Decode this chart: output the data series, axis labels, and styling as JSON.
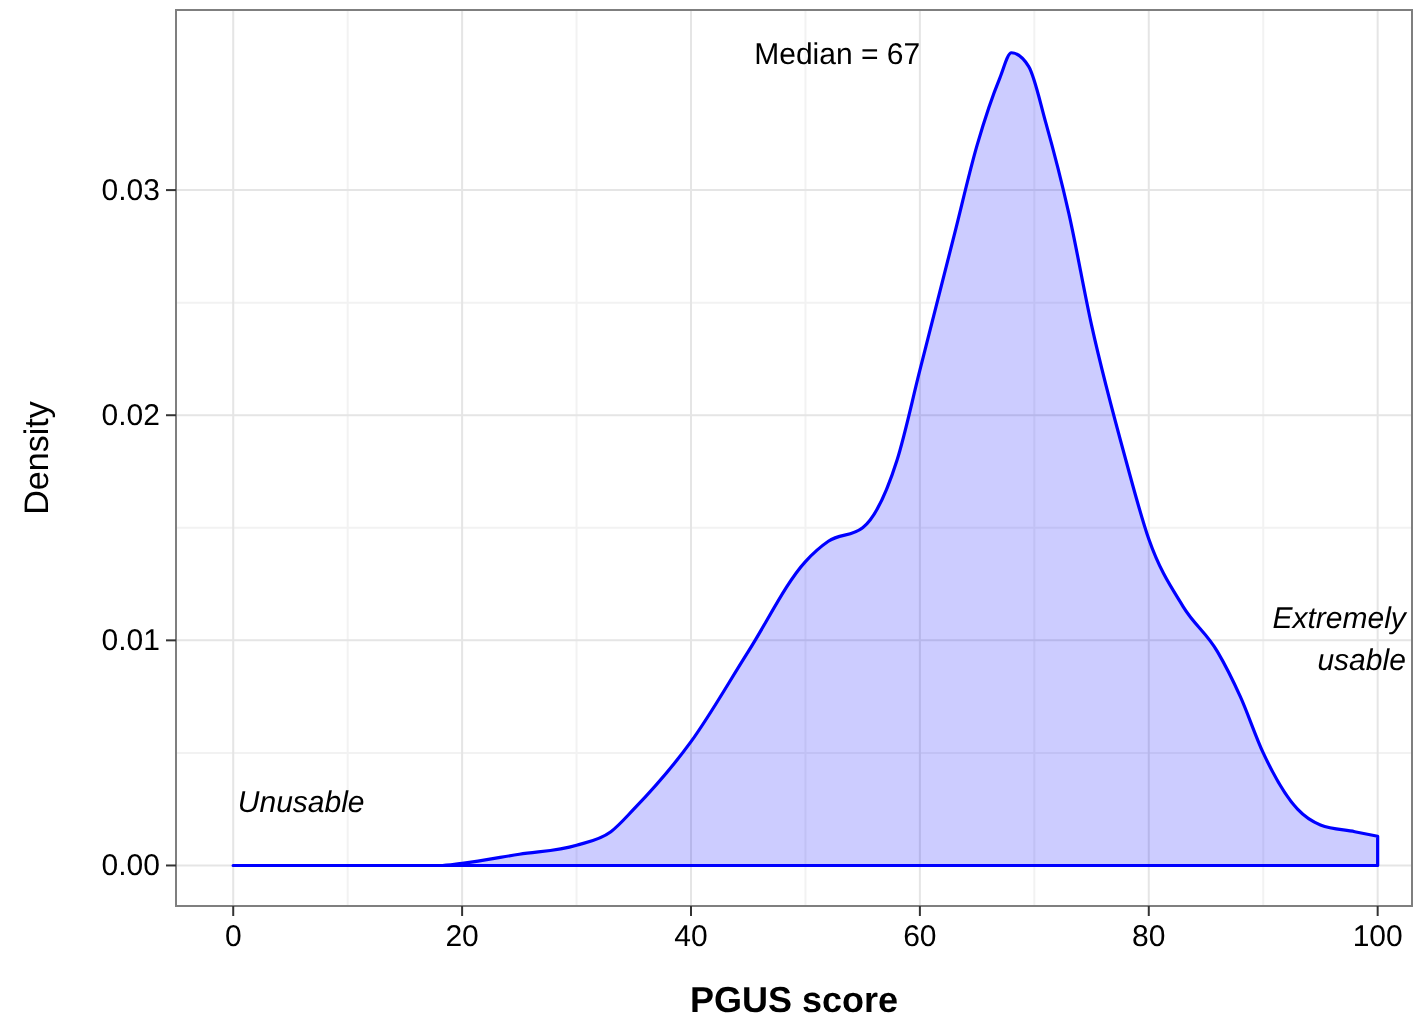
{
  "chart_data": {
    "type": "area",
    "xlabel": "PGUS score",
    "ylabel": "Density",
    "x": [
      0,
      10,
      18,
      20,
      25,
      30,
      33,
      35,
      40,
      45,
      50,
      52,
      55,
      58,
      60,
      63,
      65,
      67,
      68,
      69.5,
      71,
      73,
      75,
      78,
      80,
      83,
      86,
      88,
      90,
      93,
      95,
      98,
      100
    ],
    "series": [
      {
        "color": "#0000ff",
        "values": [
          0,
          0,
          0,
          0.0001,
          0.0005,
          0.0009,
          0.0015,
          0.0025,
          0.0055,
          0.0095,
          0.0135,
          0.0144,
          0.015,
          0.018,
          0.022,
          0.028,
          0.032,
          0.035,
          0.0361,
          0.0355,
          0.033,
          0.029,
          0.024,
          0.018,
          0.0145,
          0.0115,
          0.0095,
          0.0075,
          0.005,
          0.0025,
          0.0018,
          0.0015,
          0.0013
        ]
      }
    ],
    "xlim": [
      -5,
      103
    ],
    "ylim": [
      -0.0018,
      0.038
    ],
    "xticks": [
      0,
      20,
      40,
      60,
      80,
      100
    ],
    "yticks": [
      {
        "value": 0,
        "label": "0.00"
      },
      {
        "value": 0.01,
        "label": "0.01"
      },
      {
        "value": 0.02,
        "label": "0.02"
      },
      {
        "value": 0.03,
        "label": "0.03"
      }
    ],
    "grid": true,
    "annotations": [
      "Median = 67",
      "Unusable",
      "Extremely usable"
    ]
  }
}
